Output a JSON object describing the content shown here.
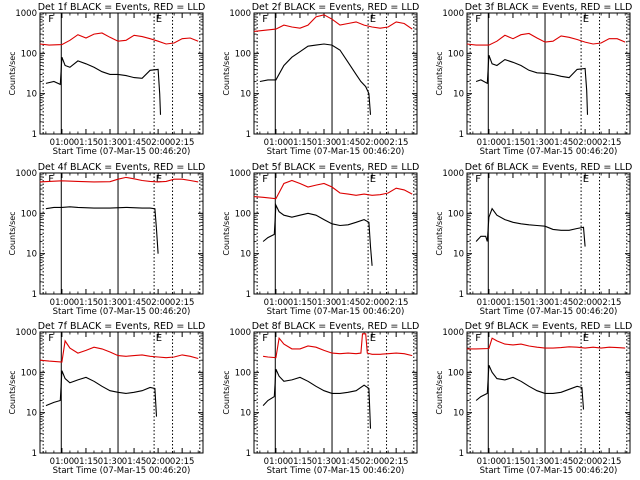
{
  "figure": {
    "layout": "3x3 grid",
    "start_time_label": "Start Time (07-Mar-15 00:46:20)",
    "ylabel": "Counts/sec",
    "colors": {
      "events": "#000000",
      "lld": "#dd0000"
    }
  },
  "chart_data": [
    {
      "type": "line",
      "title": "Det 1f BLACK = Events, RED = LLD",
      "ylabel": "Counts/sec",
      "xlabel": "Start Time (07-Mar-15 00:46:20)",
      "yscale": "log",
      "ylim": [
        1,
        1000
      ],
      "yticks": [
        "1",
        "10",
        "100",
        "1000"
      ],
      "xticks": [
        "01:00",
        "01:15",
        "01:30",
        "01:45",
        "02:00",
        "02:15"
      ],
      "markers": [
        "F",
        "E"
      ],
      "series": [
        {
          "color": "red",
          "x_min": [
            46.3,
            52,
            60,
            65,
            70,
            75,
            80,
            85,
            90,
            95,
            100,
            105,
            110,
            115,
            120,
            125,
            130,
            135,
            140,
            145
          ],
          "values": [
            170,
            160,
            165,
            210,
            290,
            240,
            300,
            320,
            250,
            200,
            210,
            280,
            260,
            230,
            200,
            170,
            180,
            230,
            240,
            200
          ]
        },
        {
          "color": "black",
          "x_min": [
            50,
            55,
            59,
            60,
            62,
            65,
            70,
            75,
            80,
            85,
            90,
            95,
            100,
            105,
            110,
            115,
            120,
            121,
            121.5
          ],
          "values": [
            18,
            20,
            17,
            80,
            50,
            45,
            65,
            55,
            45,
            35,
            30,
            30,
            28,
            25,
            24,
            38,
            40,
            10,
            3
          ]
        }
      ]
    },
    {
      "type": "line",
      "title": "Det 2f BLACK = Events, RED = LLD",
      "ylabel": "Counts/sec",
      "xlabel": "Start Time (07-Mar-15 00:46:20)",
      "yscale": "log",
      "ylim": [
        1,
        1000
      ],
      "yticks": [
        "1",
        "10",
        "100",
        "1000"
      ],
      "xticks": [
        "01:00",
        "01:15",
        "01:30",
        "01:45",
        "02:00",
        "02:15"
      ],
      "markers": [
        "F",
        "E"
      ],
      "series": [
        {
          "color": "red",
          "x_min": [
            46.3,
            52,
            60,
            65,
            70,
            75,
            80,
            85,
            90,
            95,
            100,
            105,
            110,
            115,
            120,
            125,
            130,
            135,
            140,
            145
          ],
          "values": [
            350,
            370,
            400,
            500,
            450,
            420,
            500,
            800,
            900,
            700,
            500,
            550,
            600,
            500,
            450,
            420,
            450,
            600,
            550,
            400
          ]
        },
        {
          "color": "black",
          "x_min": [
            50,
            55,
            60,
            65,
            70,
            75,
            80,
            85,
            90,
            95,
            100,
            105,
            110,
            113,
            116,
            118,
            119
          ],
          "values": [
            20,
            22,
            22,
            50,
            80,
            110,
            150,
            160,
            170,
            160,
            120,
            60,
            30,
            20,
            15,
            10,
            3
          ]
        }
      ]
    },
    {
      "type": "line",
      "title": "Det 3f BLACK = Events, RED = LLD",
      "ylabel": "Counts/sec",
      "xlabel": "Start Time (07-Mar-15 00:46:20)",
      "yscale": "log",
      "ylim": [
        1,
        1000
      ],
      "yticks": [
        "1",
        "10",
        "100",
        "1000"
      ],
      "xticks": [
        "01:00",
        "01:15",
        "01:30",
        "01:45",
        "02:00",
        "02:15"
      ],
      "markers": [
        "F",
        "E"
      ],
      "series": [
        {
          "color": "red",
          "x_min": [
            46.3,
            52,
            60,
            65,
            70,
            75,
            80,
            85,
            90,
            95,
            100,
            105,
            110,
            115,
            120,
            125,
            130,
            135,
            140,
            145
          ],
          "values": [
            170,
            160,
            160,
            200,
            280,
            230,
            290,
            310,
            240,
            190,
            200,
            270,
            250,
            220,
            190,
            170,
            180,
            230,
            230,
            190
          ]
        },
        {
          "color": "black",
          "x_min": [
            52,
            55,
            59,
            60,
            62,
            65,
            70,
            75,
            80,
            85,
            90,
            95,
            100,
            105,
            110,
            115,
            120,
            121,
            121.5
          ],
          "values": [
            20,
            22,
            18,
            90,
            55,
            50,
            70,
            60,
            50,
            38,
            33,
            32,
            30,
            27,
            25,
            40,
            42,
            12,
            3
          ]
        }
      ]
    },
    {
      "type": "line",
      "title": "Det 4f BLACK = Events, RED = LLD",
      "ylabel": "Counts/sec",
      "xlabel": "Start Time (07-Mar-15 00:46:20)",
      "yscale": "log",
      "ylim": [
        1,
        1000
      ],
      "yticks": [
        "1",
        "10",
        "100",
        "1000"
      ],
      "xticks": [
        "01:00",
        "01:15",
        "01:30",
        "01:45",
        "02:00",
        "02:15"
      ],
      "markers": [
        "F",
        "E"
      ],
      "series": [
        {
          "color": "red",
          "x_min": [
            46.3,
            52,
            60,
            70,
            80,
            90,
            95,
            100,
            105,
            110,
            115,
            120,
            125,
            130,
            135,
            140,
            145
          ],
          "values": [
            600,
            620,
            640,
            620,
            600,
            610,
            700,
            780,
            720,
            650,
            620,
            600,
            620,
            700,
            700,
            650,
            600
          ]
        },
        {
          "color": "black",
          "x_min": [
            50,
            55,
            60,
            65,
            70,
            80,
            90,
            100,
            110,
            115,
            118,
            119,
            120
          ],
          "values": [
            130,
            140,
            140,
            145,
            140,
            135,
            135,
            140,
            135,
            135,
            130,
            40,
            10
          ]
        }
      ]
    },
    {
      "type": "line",
      "title": "Det 5f BLACK = Events, RED = LLD",
      "ylabel": "Counts/sec",
      "xlabel": "Start Time (07-Mar-15 00:46:20)",
      "yscale": "log",
      "ylim": [
        1,
        1000
      ],
      "yticks": [
        "1",
        "10",
        "100",
        "1000"
      ],
      "xticks": [
        "01:00",
        "01:15",
        "01:30",
        "01:45",
        "02:00",
        "02:15"
      ],
      "markers": [
        "F",
        "E"
      ],
      "series": [
        {
          "color": "red",
          "x_min": [
            46.3,
            52,
            60,
            65,
            70,
            75,
            80,
            85,
            90,
            95,
            100,
            105,
            110,
            115,
            120,
            125,
            130,
            135,
            140,
            145
          ],
          "values": [
            260,
            250,
            230,
            550,
            650,
            550,
            450,
            500,
            550,
            450,
            320,
            300,
            280,
            300,
            280,
            290,
            320,
            420,
            380,
            300
          ]
        },
        {
          "color": "black",
          "x_min": [
            52,
            55,
            59,
            60,
            62,
            65,
            70,
            75,
            80,
            85,
            90,
            95,
            100,
            105,
            110,
            115,
            118,
            119,
            120
          ],
          "values": [
            20,
            25,
            30,
            160,
            110,
            90,
            80,
            90,
            100,
            90,
            70,
            55,
            50,
            52,
            60,
            70,
            60,
            15,
            5
          ]
        }
      ]
    },
    {
      "type": "line",
      "title": "Det 6f BLACK = Events, RED = LLD",
      "ylabel": "Counts/sec",
      "xlabel": "Start Time (07-Mar-15 00:46:20)",
      "yscale": "log",
      "ylim": [
        1,
        1000
      ],
      "yticks": [
        "1",
        "10",
        "100",
        "1000"
      ],
      "xticks": [
        "01:00",
        "01:15",
        "01:30",
        "01:45",
        "02:00",
        "02:15"
      ],
      "markers": [
        "F",
        "E"
      ],
      "series": [
        {
          "color": "black",
          "x_min": [
            52,
            55,
            58,
            59,
            60,
            62,
            65,
            70,
            75,
            80,
            85,
            90,
            95,
            100,
            105,
            110,
            115,
            119,
            120
          ],
          "values": [
            20,
            27,
            27,
            20,
            80,
            130,
            90,
            70,
            60,
            55,
            52,
            50,
            48,
            40,
            38,
            38,
            42,
            45,
            15
          ]
        }
      ]
    },
    {
      "type": "line",
      "title": "Det 7f BLACK = Events, RED = LLD",
      "ylabel": "Counts/sec",
      "xlabel": "Start Time (07-Mar-15 00:46:20)",
      "yscale": "log",
      "ylim": [
        1,
        1000
      ],
      "yticks": [
        "1",
        "10",
        "100",
        "1000"
      ],
      "xticks": [
        "01:00",
        "01:15",
        "01:30",
        "01:45",
        "02:00",
        "02:15"
      ],
      "markers": [
        "F",
        "E"
      ],
      "series": [
        {
          "color": "red",
          "x_min": [
            46.3,
            52,
            60,
            62,
            65,
            70,
            75,
            80,
            85,
            90,
            95,
            100,
            105,
            110,
            115,
            120,
            125,
            130,
            135,
            140,
            145
          ],
          "values": [
            200,
            190,
            180,
            600,
            400,
            300,
            350,
            420,
            380,
            320,
            260,
            250,
            260,
            270,
            250,
            240,
            230,
            240,
            270,
            250,
            220
          ]
        },
        {
          "color": "black",
          "x_min": [
            50,
            55,
            59,
            60,
            62,
            65,
            70,
            75,
            80,
            85,
            90,
            95,
            100,
            105,
            110,
            115,
            118,
            119
          ],
          "values": [
            15,
            18,
            20,
            110,
            70,
            55,
            65,
            75,
            60,
            45,
            35,
            32,
            30,
            32,
            35,
            42,
            40,
            8
          ]
        }
      ]
    },
    {
      "type": "line",
      "title": "Det 8f BLACK = Events, RED = LLD",
      "ylabel": "Counts/sec",
      "xlabel": "Start Time (07-Mar-15 00:46:20)",
      "yscale": "log",
      "ylim": [
        1,
        1000
      ],
      "yticks": [
        "1",
        "10",
        "100",
        "1000"
      ],
      "xticks": [
        "01:00",
        "01:15",
        "01:30",
        "01:45",
        "02:00",
        "02:15"
      ],
      "markers": [
        "F",
        "E"
      ],
      "series": [
        {
          "color": "red",
          "x_min": [
            52,
            55,
            60,
            62,
            65,
            70,
            75,
            80,
            85,
            90,
            95,
            100,
            105,
            110,
            113,
            114,
            115,
            116,
            117,
            120,
            125,
            130,
            135,
            140,
            145
          ],
          "values": [
            250,
            240,
            230,
            700,
            500,
            380,
            380,
            450,
            420,
            350,
            300,
            290,
            300,
            290,
            300,
            900,
            900,
            900,
            300,
            280,
            280,
            290,
            300,
            290,
            260
          ]
        },
        {
          "color": "black",
          "x_min": [
            52,
            55,
            59,
            60,
            62,
            65,
            70,
            75,
            80,
            85,
            90,
            95,
            100,
            105,
            110,
            115,
            118,
            119
          ],
          "values": [
            15,
            20,
            25,
            120,
            80,
            60,
            65,
            75,
            60,
            45,
            35,
            30,
            30,
            32,
            35,
            48,
            40,
            4
          ]
        }
      ]
    },
    {
      "type": "line",
      "title": "Det 9f BLACK = Events, RED = LLD",
      "ylabel": "Counts/sec",
      "xlabel": "Start Time (07-Mar-15 00:46:20)",
      "yscale": "log",
      "ylim": [
        1,
        1000
      ],
      "yticks": [
        "1",
        "10",
        "100",
        "1000"
      ],
      "xticks": [
        "01:00",
        "01:15",
        "01:30",
        "01:45",
        "02:00",
        "02:15"
      ],
      "markers": [
        "F",
        "E"
      ],
      "series": [
        {
          "color": "red",
          "x_min": [
            46.3,
            52,
            60,
            62,
            65,
            70,
            75,
            80,
            85,
            90,
            95,
            100,
            105,
            110,
            115,
            120,
            125,
            130,
            135,
            140,
            145
          ],
          "values": [
            380,
            380,
            390,
            700,
            600,
            500,
            480,
            500,
            450,
            420,
            400,
            400,
            410,
            430,
            420,
            400,
            420,
            400,
            420,
            410,
            400
          ]
        },
        {
          "color": "black",
          "x_min": [
            52,
            55,
            59,
            60,
            62,
            65,
            70,
            75,
            80,
            85,
            90,
            95,
            100,
            105,
            110,
            115,
            118,
            119
          ],
          "values": [
            20,
            25,
            30,
            150,
            100,
            70,
            65,
            75,
            60,
            45,
            35,
            30,
            30,
            32,
            38,
            45,
            42,
            12
          ]
        }
      ]
    }
  ]
}
